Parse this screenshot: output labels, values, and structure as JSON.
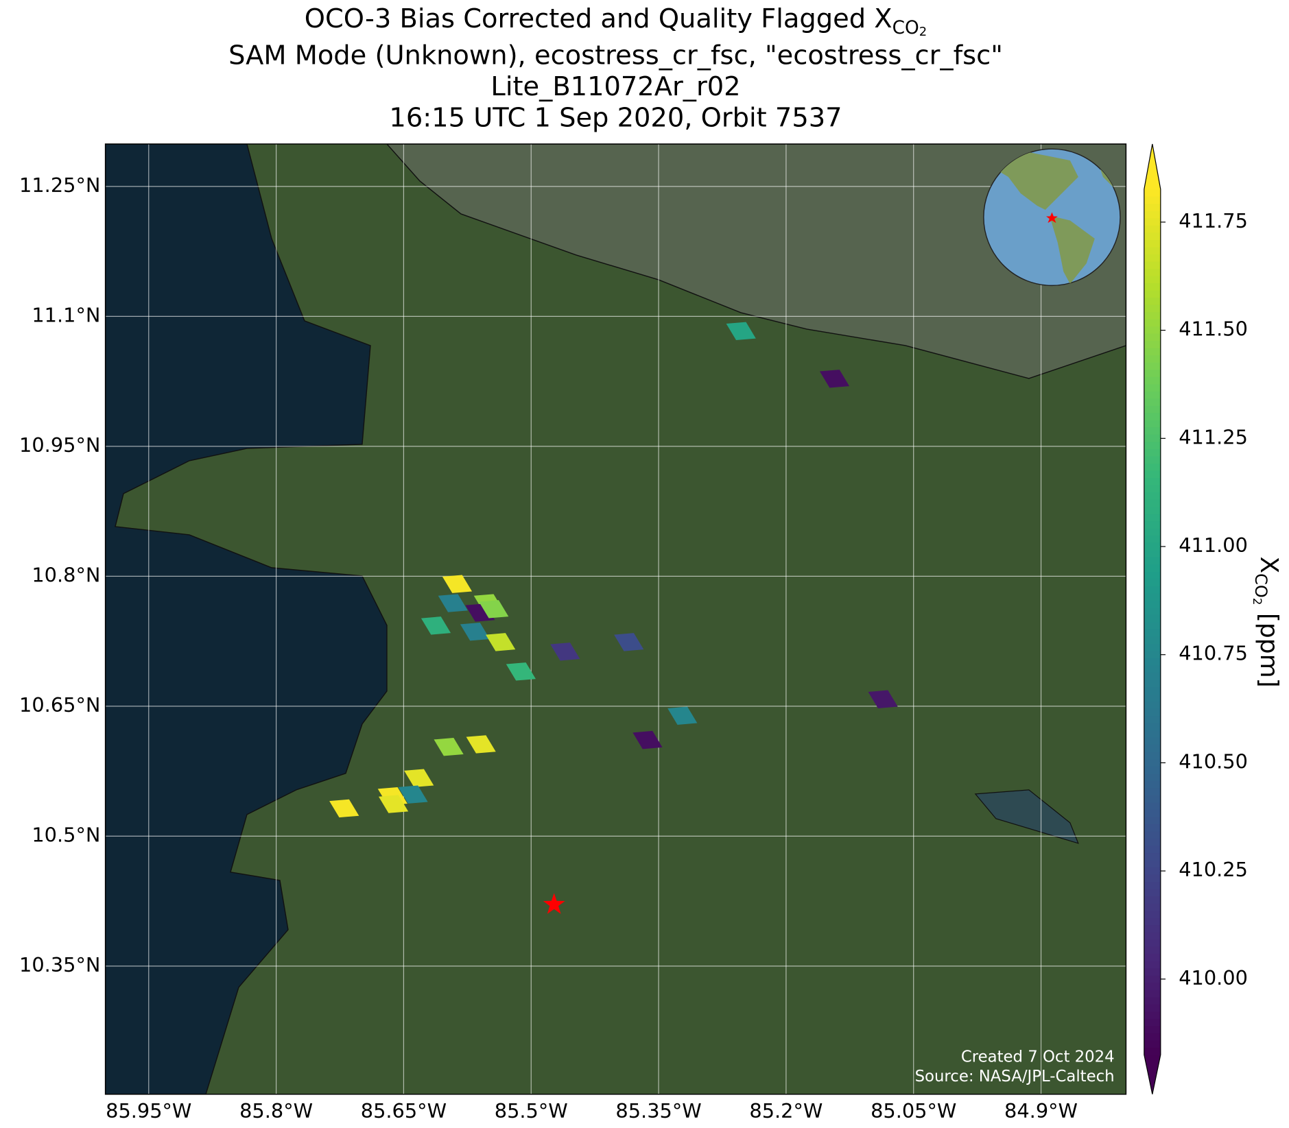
{
  "chart_data": {
    "type": "map",
    "title": {
      "line1": "OCO-3 Bias Corrected and Quality Flagged X",
      "line1_sub": "CO",
      "line1_subsub": "2",
      "line2": "SAM Mode (Unknown), ecostress_cr_fsc, \"ecostress_cr_fsc\"",
      "line3": "Lite_B11072Ar_r02",
      "line4": "16:15 UTC 1 Sep 2020, Orbit 7537"
    },
    "xlim": [
      -86.001,
      -84.8
    ],
    "ylim": [
      10.202,
      11.299
    ],
    "xticks": [
      {
        "value": -85.95,
        "label": "85.95°W"
      },
      {
        "value": -85.8,
        "label": "85.8°W"
      },
      {
        "value": -85.65,
        "label": "85.65°W"
      },
      {
        "value": -85.5,
        "label": "85.5°W"
      },
      {
        "value": -85.35,
        "label": "85.35°W"
      },
      {
        "value": -85.2,
        "label": "85.2°W"
      },
      {
        "value": -85.05,
        "label": "85.05°W"
      },
      {
        "value": -84.9,
        "label": "84.9°W"
      }
    ],
    "yticks": [
      {
        "value": 11.25,
        "label": "11.25°N"
      },
      {
        "value": 11.1,
        "label": "11.1°N"
      },
      {
        "value": 10.95,
        "label": "10.95°N"
      },
      {
        "value": 10.8,
        "label": "10.8°N"
      },
      {
        "value": 10.65,
        "label": "10.65°N"
      },
      {
        "value": 10.5,
        "label": "10.5°N"
      },
      {
        "value": 10.35,
        "label": "10.35°N"
      }
    ],
    "grid": true,
    "colormap": "viridis",
    "clim": [
      409.825,
      411.826
    ],
    "cticks": [
      {
        "value": 410,
        "label": "410.00"
      },
      {
        "value": 410.25,
        "label": "410.25"
      },
      {
        "value": 410.5,
        "label": "410.50"
      },
      {
        "value": 410.75,
        "label": "410.75"
      },
      {
        "value": 411,
        "label": "411.00"
      },
      {
        "value": 411.25,
        "label": "411.25"
      },
      {
        "value": 411.5,
        "label": "411.50"
      },
      {
        "value": 411.75,
        "label": "411.75"
      }
    ],
    "colorbar_label": {
      "main": "X",
      "sub": "CO",
      "subsub": "2",
      "unit": " [ppm]"
    },
    "soundings": {
      "lon": [
        -85.253,
        -85.143,
        -85.587,
        -85.592,
        -85.55,
        -85.56,
        -85.544,
        -85.612,
        -85.566,
        -85.536,
        -85.512,
        -85.46,
        -85.385,
        -85.322,
        -85.086,
        -85.363,
        -85.597,
        -85.559,
        -85.632,
        -85.639,
        -85.663,
        -85.662,
        -85.72
      ],
      "lat": [
        11.083,
        11.028,
        10.791,
        10.769,
        10.769,
        10.758,
        10.762,
        10.743,
        10.736,
        10.724,
        10.69,
        10.713,
        10.724,
        10.639,
        10.658,
        10.611,
        10.603,
        10.606,
        10.567,
        10.548,
        10.546,
        10.537,
        10.532
      ],
      "values": [
        411.0,
        409.9,
        411.8,
        410.7,
        411.5,
        409.9,
        411.45,
        411.1,
        410.7,
        411.65,
        411.15,
        410.15,
        410.3,
        410.75,
        409.95,
        409.9,
        411.5,
        411.75,
        411.75,
        410.75,
        411.8,
        411.75,
        411.8
      ]
    },
    "target": {
      "lon": -85.473,
      "lat": 10.421
    },
    "annotations": [
      "Created 7 Oct 2024",
      "Source: NASA/JPL-Caltech"
    ]
  }
}
